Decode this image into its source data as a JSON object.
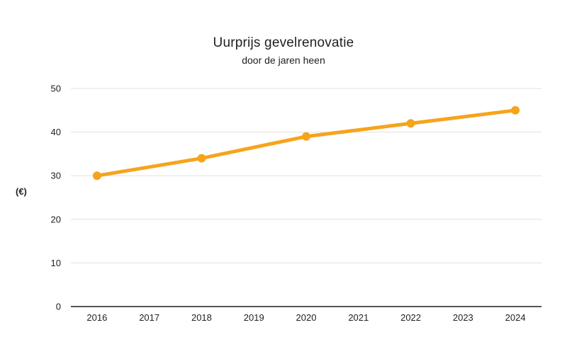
{
  "chart_data": {
    "type": "line",
    "title": "Uurprijs gevelrenovatie",
    "subtitle": "door de jaren heen",
    "ylabel": "(€)",
    "xlabel": "",
    "categories": [
      "2016",
      "2017",
      "2018",
      "2019",
      "2020",
      "2021",
      "2022",
      "2023",
      "2024"
    ],
    "series": [
      {
        "x": [
          "2016",
          "2018",
          "2020",
          "2022",
          "2024"
        ],
        "values": [
          30,
          34,
          39,
          42,
          45
        ]
      }
    ],
    "ylim": [
      0,
      50
    ],
    "yticks": [
      0,
      10,
      20,
      30,
      40,
      50
    ],
    "grid": true,
    "legend": "none",
    "colors": {
      "line": "#F6A41C",
      "point": "#F6A41C",
      "grid": "#E0E0E0",
      "axis": "#555555",
      "text": "#212121"
    }
  }
}
